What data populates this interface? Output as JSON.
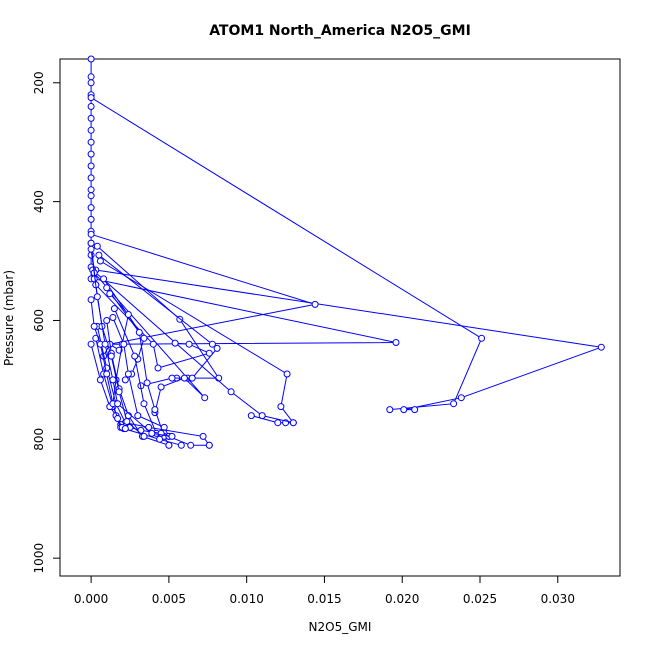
{
  "chart_data": {
    "type": "line",
    "title": "ATOM1 North_America N2O5_GMI",
    "xlabel": "N2O5_GMI",
    "ylabel": "Pressure (mbar)",
    "xlim": [
      -0.002,
      0.034
    ],
    "ylim": [
      1030,
      160
    ],
    "y_reversed": true,
    "grid": false,
    "legend": "none",
    "x_ticks": [
      {
        "value": 0.0,
        "label": "0.000"
      },
      {
        "value": 0.005,
        "label": "0.005"
      },
      {
        "value": 0.01,
        "label": "0.010"
      },
      {
        "value": 0.015,
        "label": "0.015"
      },
      {
        "value": 0.02,
        "label": "0.020"
      },
      {
        "value": 0.025,
        "label": "0.025"
      },
      {
        "value": 0.03,
        "label": "0.030"
      }
    ],
    "y_ticks": [
      {
        "value": 200,
        "label": "200"
      },
      {
        "value": 400,
        "label": "400"
      },
      {
        "value": 600,
        "label": "600"
      },
      {
        "value": 800,
        "label": "800"
      },
      {
        "value": 1000,
        "label": "1000"
      }
    ],
    "color": "#0000ff",
    "series": [
      {
        "x": [
          0.0,
          0.0,
          0.0,
          0.0,
          0.0,
          0.0,
          0.0,
          0.0,
          0.0,
          0.0,
          0.0,
          0.0
        ],
        "y": [
          160,
          190,
          200,
          220,
          240,
          260,
          280,
          300,
          320,
          340,
          360,
          380
        ]
      },
      {
        "x": [
          0.0,
          0.0251,
          0.0233,
          0.0192
        ],
        "y": [
          225,
          630,
          740,
          750
        ]
      },
      {
        "x": [
          0.0,
          0.0,
          0.0,
          0.0,
          0.0,
          0.0,
          0.0,
          0.0
        ],
        "y": [
          390,
          410,
          430,
          450,
          470,
          490,
          510,
          530
        ]
      },
      {
        "x": [
          0.0003,
          0.0328,
          0.0238,
          0.0201,
          0.0208
        ],
        "y": [
          515,
          645,
          730,
          750,
          750
        ]
      },
      {
        "x": [
          0.0002,
          0.0196,
          0.0012,
          0.0018
        ],
        "y": [
          530,
          637,
          640,
          650
        ]
      },
      {
        "x": [
          0.0,
          0.0144,
          0.0012,
          0.0008
        ],
        "y": [
          455,
          573,
          640,
          660
        ]
      },
      {
        "x": [
          0.0004,
          0.0057,
          0.0082,
          0.0062,
          0.0055
        ],
        "y": [
          475,
          598,
          697,
          697,
          697
        ]
      },
      {
        "x": [
          0.0005,
          0.0078,
          0.0081,
          0.0065,
          0.0052,
          0.0032
        ],
        "y": [
          490,
          640,
          647,
          697,
          697,
          710
        ]
      },
      {
        "x": [
          0.0006,
          0.0126,
          0.0122,
          0.013,
          0.0125,
          0.012,
          0.0103
        ],
        "y": [
          500,
          690,
          745,
          772,
          772,
          772,
          760
        ]
      },
      {
        "x": [
          0.0001,
          0.009,
          0.011,
          0.013
        ],
        "y": [
          515,
          720,
          760,
          772
        ]
      },
      {
        "x": [
          0.0002,
          0.0073,
          0.006,
          0.0045,
          0.0041
        ],
        "y": [
          520,
          730,
          697,
          712,
          755
        ]
      },
      {
        "x": [
          0.0003,
          0.004,
          0.0043,
          0.0076,
          0.0063,
          0.0054
        ],
        "y": [
          540,
          640,
          680,
          655,
          640,
          638
        ]
      },
      {
        "x": [
          0.0008,
          0.0034,
          0.003,
          0.0026,
          0.0022
        ],
        "y": [
          530,
          630,
          665,
          690,
          700
        ]
      },
      {
        "x": [
          0.001,
          0.0031,
          0.0036,
          0.0041,
          0.0047,
          0.005
        ],
        "y": [
          545,
          620,
          705,
          750,
          795,
          810
        ]
      },
      {
        "x": [
          0.0012,
          0.0024,
          0.002,
          0.0016,
          0.0014
        ],
        "y": [
          555,
          590,
          640,
          700,
          740
        ]
      },
      {
        "x": [
          0.0015,
          0.0028,
          0.0034,
          0.0042,
          0.005
        ],
        "y": [
          580,
          660,
          740,
          790,
          795
        ]
      },
      {
        "x": [
          0.0014,
          0.0021,
          0.0024,
          0.003,
          0.0047,
          0.005
        ],
        "y": [
          595,
          640,
          690,
          760,
          780,
          795
        ]
      },
      {
        "x": [
          0.001,
          0.0013,
          0.0018,
          0.0024,
          0.0033,
          0.005
        ],
        "y": [
          600,
          655,
          715,
          760,
          795,
          810
        ]
      },
      {
        "x": [
          0.0004,
          0.001,
          0.0016,
          0.0022,
          0.0037,
          0.0072,
          0.0076
        ],
        "y": [
          610,
          680,
          740,
          772,
          780,
          795,
          810
        ]
      },
      {
        "x": [
          0.0003,
          0.0008,
          0.0014,
          0.0019,
          0.0025,
          0.0032,
          0.0045,
          0.0064,
          0.0076
        ],
        "y": [
          630,
          690,
          745,
          775,
          780,
          785,
          790,
          810,
          810
        ]
      },
      {
        "x": [
          0.0,
          0.0006,
          0.0012,
          0.0016,
          0.0019,
          0.0021,
          0.0044,
          0.0058
        ],
        "y": [
          640,
          700,
          745,
          760,
          780,
          782,
          800,
          810
        ]
      },
      {
        "x": [
          0.0,
          0.0002,
          0.0006,
          0.001,
          0.0014,
          0.0017,
          0.002,
          0.0022
        ],
        "y": [
          565,
          610,
          640,
          690,
          740,
          765,
          780,
          782
        ]
      },
      {
        "x": [
          0.0,
          0.0003,
          0.0007,
          0.0013,
          0.0018,
          0.0023,
          0.0034
        ],
        "y": [
          470,
          540,
          610,
          660,
          720,
          770,
          795
        ]
      },
      {
        "x": [
          0.0,
          0.0004,
          0.0009,
          0.0014,
          0.0017,
          0.0039,
          0.0052
        ],
        "y": [
          480,
          560,
          640,
          700,
          740,
          790,
          795
        ]
      }
    ]
  }
}
